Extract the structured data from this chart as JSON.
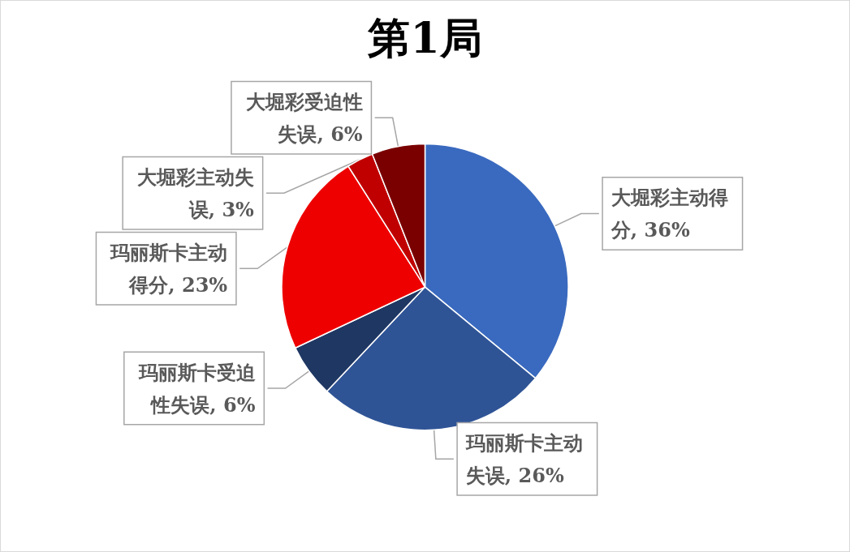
{
  "chart_data": {
    "type": "pie",
    "title": "第1局",
    "categories": [
      "大堀彩主动得分",
      "玛丽斯卡主动失误",
      "玛丽斯卡受迫性失误",
      "玛丽斯卡主动得分",
      "大堀彩主动失误",
      "大堀彩受迫性失误"
    ],
    "values": [
      36,
      26,
      6,
      23,
      3,
      6
    ],
    "colors": [
      "#3a6abf",
      "#2f5496",
      "#1f3763",
      "#ee0000",
      "#c00000",
      "#7a0000"
    ],
    "value_labels": [
      "36%",
      "26%",
      "6%",
      "23%",
      "3%",
      "6%"
    ]
  }
}
